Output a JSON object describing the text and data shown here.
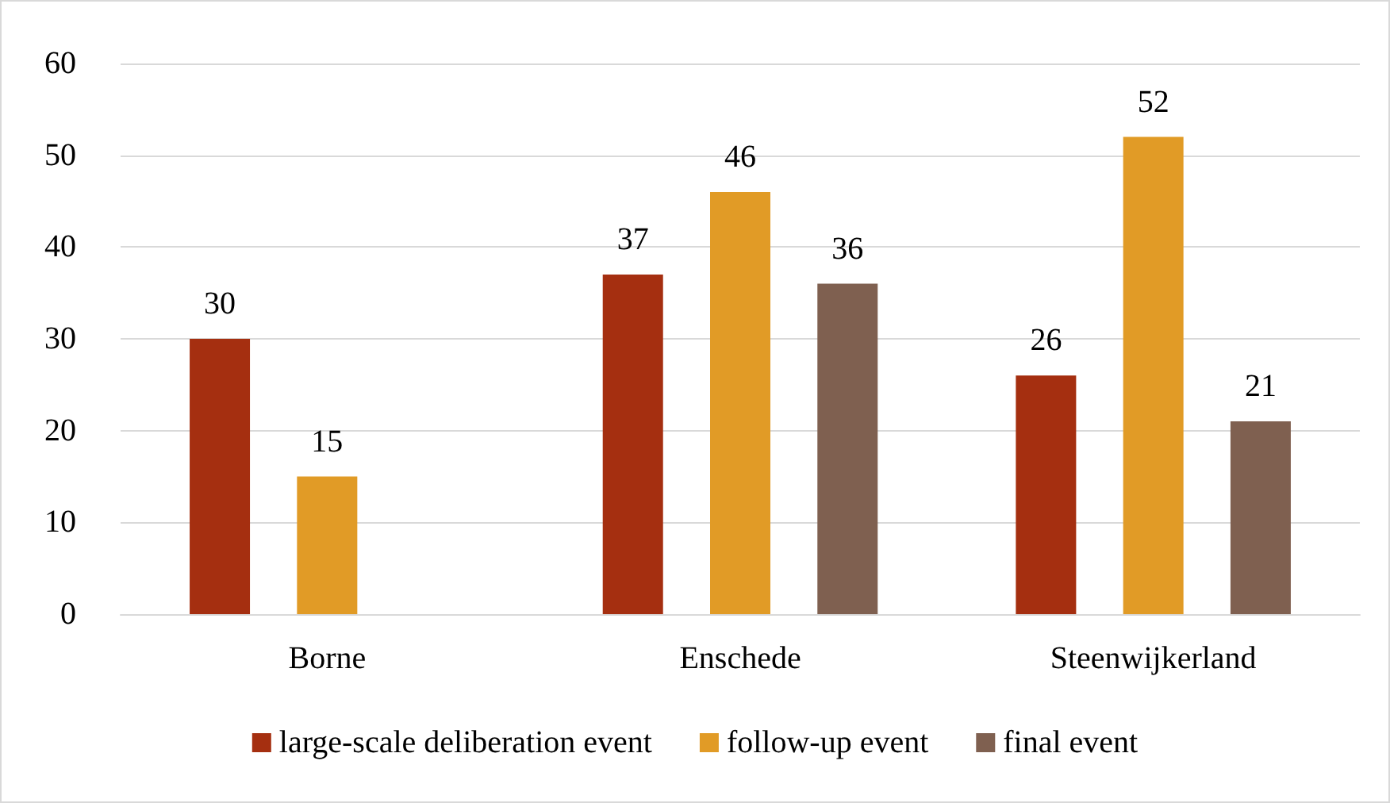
{
  "chart_data": {
    "type": "bar",
    "categories": [
      "Borne",
      "Enschede",
      "Steenwijkerland"
    ],
    "series": [
      {
        "name": "large-scale deliberation event",
        "color": "#a52f10",
        "values": [
          30,
          37,
          26
        ]
      },
      {
        "name": "follow-up event",
        "color": "#e19b26",
        "values": [
          15,
          46,
          52
        ]
      },
      {
        "name": "final event",
        "color": "#7f6050",
        "values": [
          null,
          36,
          21
        ]
      }
    ],
    "ylim": [
      0,
      60
    ],
    "yticks": [
      0,
      10,
      20,
      30,
      40,
      50,
      60
    ],
    "grid": "y",
    "legend": "bottom",
    "data_labels": true
  }
}
